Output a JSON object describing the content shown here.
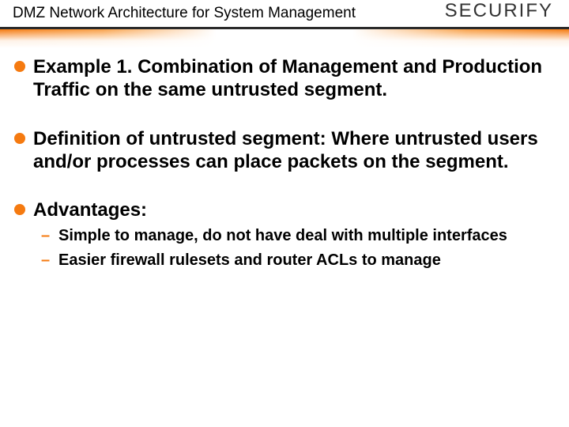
{
  "header": {
    "title": "DMZ Network Architecture for System Management"
  },
  "logo": {
    "text_pre": "SECUR",
    "text_accent": "I",
    "text_post": "FY"
  },
  "bullets": [
    {
      "text": "Example 1. Combination of Management and Production Traffic on the same untrusted segment."
    },
    {
      "text": "Definition of untrusted segment: Where untrusted users and/or processes can place packets on the segment."
    },
    {
      "text": "Advantages:",
      "subs": [
        "Simple to manage, do not have deal with multiple interfaces",
        "Easier firewall rulesets and router ACLs to manage"
      ]
    }
  ],
  "colors": {
    "accent": "#f57a10",
    "text": "#000000",
    "background": "#ffffff"
  }
}
